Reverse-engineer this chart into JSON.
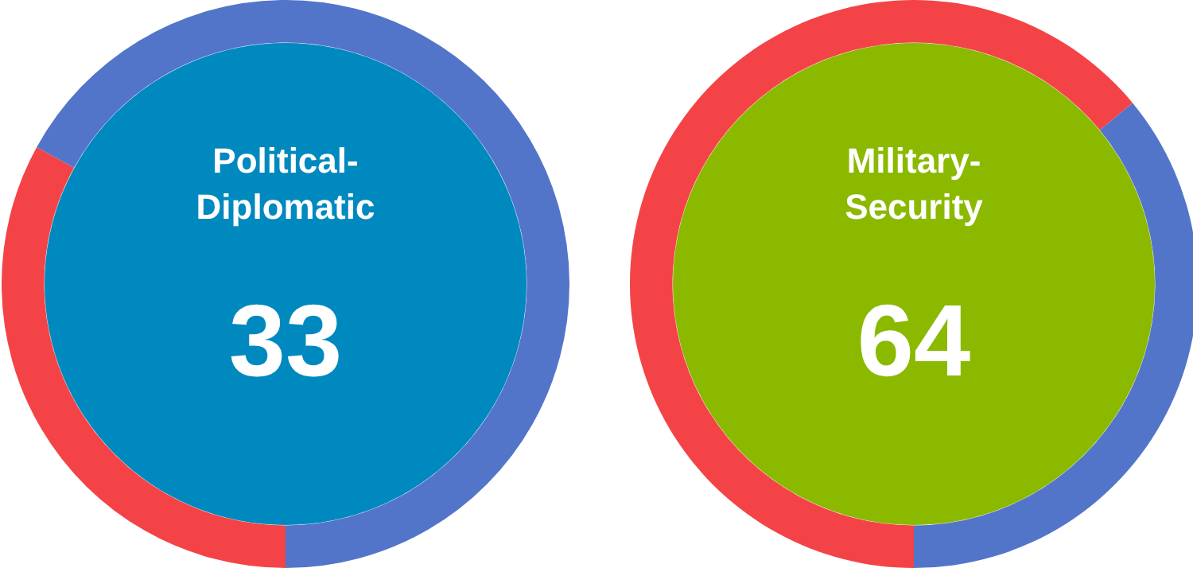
{
  "chart_data": [
    {
      "type": "donut",
      "title": "Political-Diplomatic",
      "categories": [
        null,
        null
      ],
      "values": [
        33,
        67
      ],
      "colors": [
        "#f44346",
        "#5375c9"
      ],
      "value_labels": [
        "33",
        null
      ]
    },
    {
      "type": "donut",
      "title": "Military-Security",
      "categories": [
        null,
        null
      ],
      "values": [
        64,
        36
      ],
      "colors": [
        "#f44346",
        "#5375c9"
      ],
      "value_labels": [
        "64",
        null
      ]
    }
  ]
}
